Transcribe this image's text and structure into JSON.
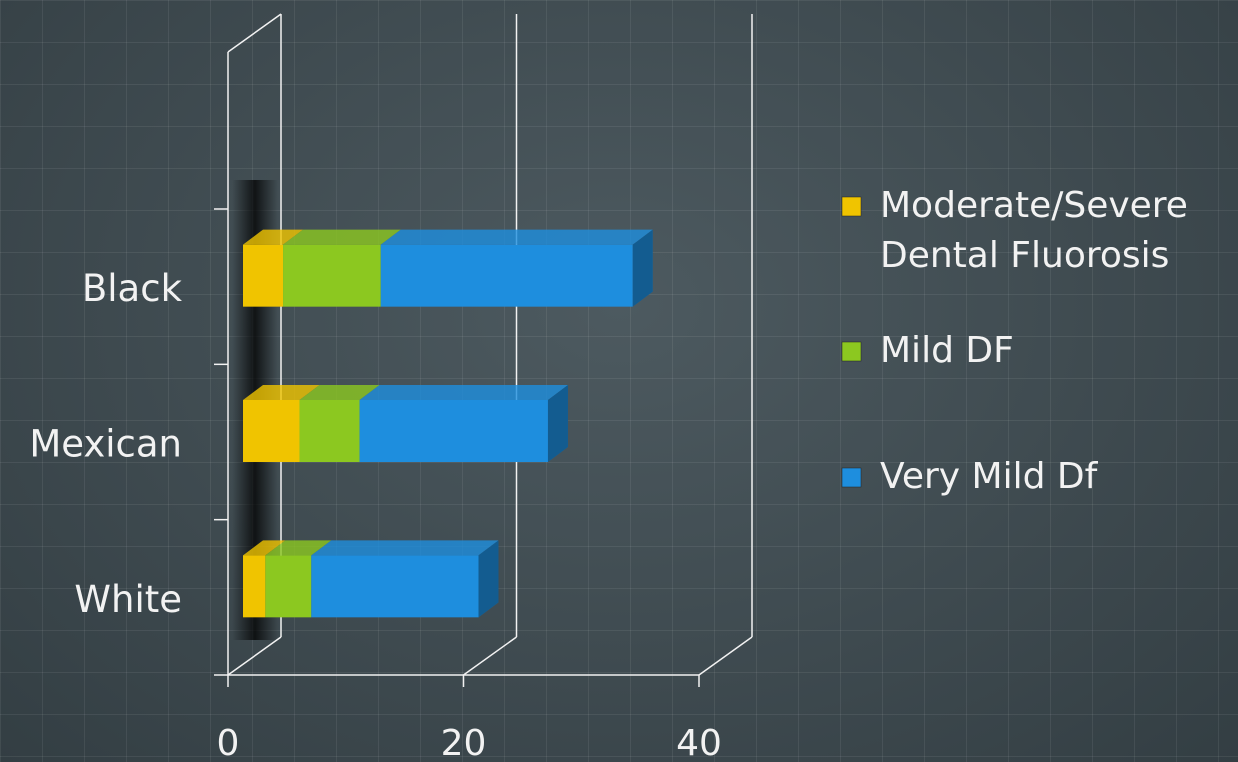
{
  "chart_data": {
    "type": "bar",
    "orientation": "horizontal",
    "stacked": true,
    "categories": [
      "Black",
      "Mexican",
      "White"
    ],
    "series": [
      {
        "name": "Moderate/Severe Dental Fluorosis",
        "color": "#f0c400",
        "values": [
          3.4,
          4.8,
          1.9
        ]
      },
      {
        "name": "Mild DF",
        "color": "#8cc820",
        "values": [
          8.3,
          5.1,
          3.9
        ]
      },
      {
        "name": "Very Mild Df",
        "color": "#1e8ede",
        "values": [
          21.4,
          16.0,
          14.2
        ]
      }
    ],
    "xlim": [
      0,
      40
    ],
    "xticks": [
      0,
      20,
      40
    ],
    "grid": true,
    "legend": "right"
  }
}
